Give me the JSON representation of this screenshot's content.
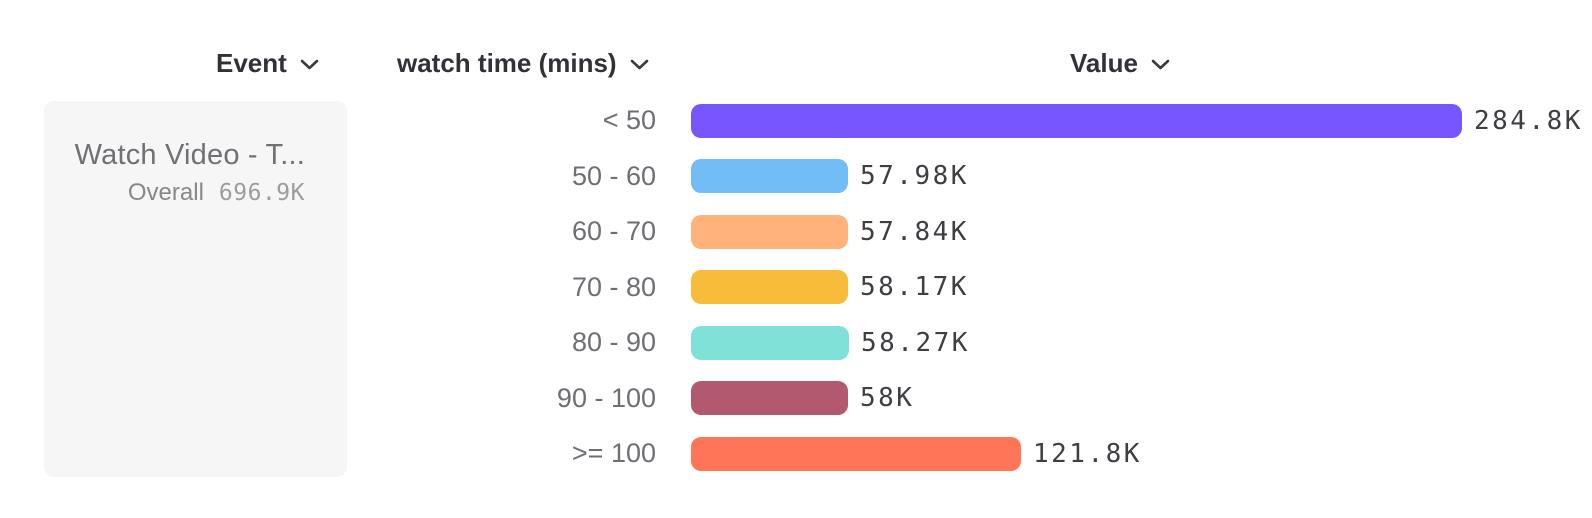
{
  "columns": {
    "event_label": "Event",
    "breakdown_label": "watch time (mins)",
    "value_label": "Value"
  },
  "event_card": {
    "name": "Watch Video - T...",
    "overall_label": "Overall",
    "overall_value": "696.9K"
  },
  "icons": {
    "header_dropdown": "chevron-down-icon"
  },
  "colors": {
    "card_background": "#f6f6f7",
    "header_text": "#313138",
    "label_text": "#6e6e74",
    "value_text": "#3e3e43"
  },
  "chart_data": {
    "type": "bar",
    "orientation": "horizontal",
    "title": "",
    "xlabel": "Value",
    "ylabel": "watch time (mins)",
    "grid": false,
    "legend": "none",
    "categories": [
      "< 50",
      "50 - 60",
      "60 - 70",
      "70 - 80",
      "80 - 90",
      "90 - 100",
      ">= 100"
    ],
    "values": [
      284800,
      57980,
      57840,
      58170,
      58270,
      58000,
      121800
    ],
    "value_labels": [
      "284.8K",
      "57.98K",
      "57.84K",
      "58.17K",
      "58.27K",
      "58K",
      "121.8K"
    ],
    "bar_colors": [
      "#7856FF",
      "#72BEF4",
      "#FFB27A",
      "#F8BC3B",
      "#80E1D9",
      "#B2596E",
      "#FF7557"
    ],
    "xlim": [
      0,
      284800
    ]
  }
}
